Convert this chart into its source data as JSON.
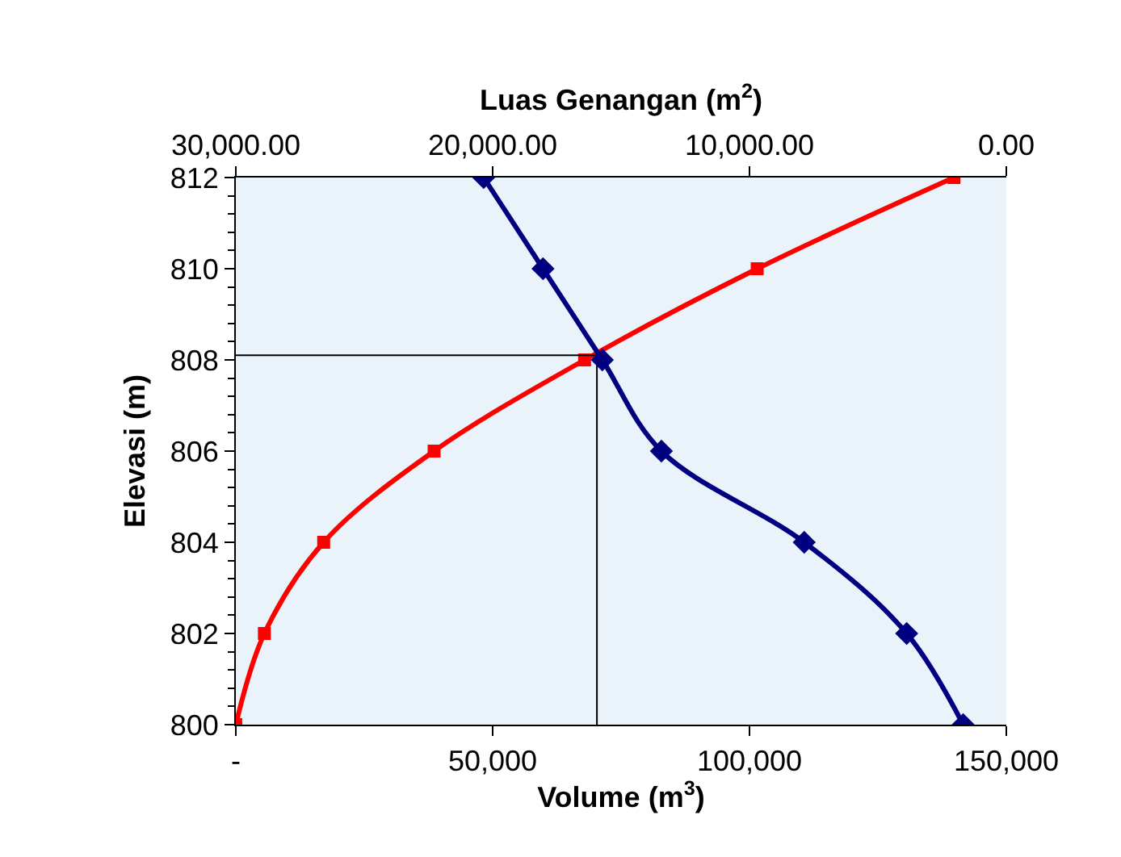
{
  "chart_data": {
    "type": "line",
    "xlabel": "Volume (m$^{3}$)",
    "x2label": "Luas Genangan (m$^{2}$)",
    "ylabel": "Elevasi (m)",
    "xlim": [
      0,
      150000
    ],
    "xticks": [
      {
        "value": 0,
        "label": "-"
      },
      {
        "value": 50000,
        "label": "50,000"
      },
      {
        "value": 100000,
        "label": "100,000"
      },
      {
        "value": 150000,
        "label": "150,000"
      }
    ],
    "x2lim": [
      30000,
      0
    ],
    "x2ticks": [
      {
        "value": 30000,
        "label": "30,000.00"
      },
      {
        "value": 20000,
        "label": "20,000.00"
      },
      {
        "value": 10000,
        "label": "10,000.00"
      },
      {
        "value": 0,
        "label": "0.00"
      }
    ],
    "ylim": [
      800,
      812
    ],
    "yticks": [
      800,
      802,
      804,
      806,
      808,
      810,
      812
    ],
    "grid": false,
    "line_style": "solid",
    "series": [
      {
        "color": "#ff0000",
        "marker": "square",
        "x": [
          0,
          5560,
          17100,
          38600,
          67900,
          101500,
          139800
        ],
        "values": [
          800,
          802,
          804,
          806,
          808,
          810,
          812
        ]
      },
      {
        "color": "#000080",
        "marker": "diamond",
        "axis": "x2",
        "x": [
          20350,
          18040,
          15730,
          13430,
          7870,
          3880,
          1680
        ],
        "values": [
          812,
          810,
          808,
          806,
          804,
          802,
          800
        ]
      },
      {
        "color": "#000000",
        "marker": "none",
        "x": [
          0,
          70300,
          70300
        ],
        "values": [
          808.1,
          808.1,
          800
        ]
      }
    ]
  }
}
